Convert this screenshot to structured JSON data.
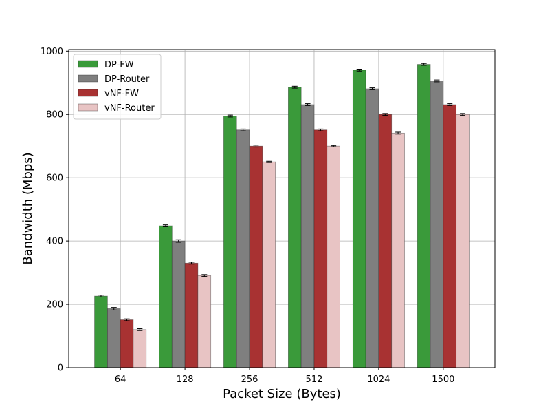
{
  "chart_data": {
    "type": "bar",
    "xlabel": "Packet Size (Bytes)",
    "ylabel": "Bandwidth (Mbps)",
    "categories": [
      "64",
      "128",
      "256",
      "512",
      "1024",
      "1500"
    ],
    "ylim": [
      0,
      1005
    ],
    "yticks": [
      0,
      200,
      400,
      600,
      800,
      1000
    ],
    "grid": true,
    "legend_position": "top-left",
    "series": [
      {
        "name": "DP-FW",
        "color": "#3a9a3a",
        "values": [
          226,
          448,
          795,
          886,
          940,
          958
        ],
        "errors": [
          3,
          3,
          3,
          3,
          3,
          3
        ]
      },
      {
        "name": "DP-Router",
        "color": "#7f7f7f",
        "values": [
          186,
          400,
          751,
          831,
          881,
          906
        ],
        "errors": [
          4,
          4,
          3,
          3,
          3,
          3
        ]
      },
      {
        "name": "vNF-FW",
        "color": "#a83232",
        "values": [
          151,
          330,
          700,
          751,
          800,
          831
        ],
        "errors": [
          3,
          3,
          3,
          3,
          3,
          3
        ]
      },
      {
        "name": "vNF-Router",
        "color": "#e8c4c4",
        "values": [
          120,
          291,
          650,
          700,
          741,
          800
        ],
        "errors": [
          3,
          3,
          2,
          2,
          3,
          3
        ]
      }
    ]
  }
}
